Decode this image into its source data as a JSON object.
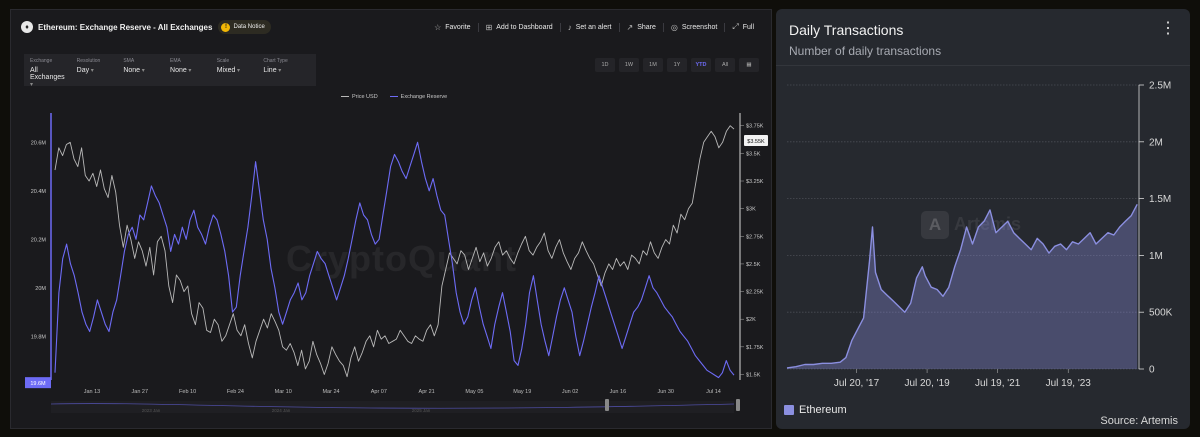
{
  "cq": {
    "logo_glyph": "♦",
    "title": "Ethereum: Exchange Reserve - All Exchanges",
    "notice": "Data Notice",
    "notice_icon": "!",
    "actions": [
      {
        "icon": "☆",
        "icon_name": "star-icon",
        "label": "Favorite"
      },
      {
        "icon": "⊞",
        "icon_name": "dashboard-icon",
        "label": "Add to Dashboard"
      },
      {
        "icon": "♪",
        "icon_name": "bell-icon",
        "label": "Set an alert"
      },
      {
        "icon": "↗",
        "icon_name": "share-icon",
        "label": "Share"
      },
      {
        "icon": "◎",
        "icon_name": "camera-icon",
        "label": "Screenshot"
      },
      {
        "icon": "⤢",
        "icon_name": "fullscreen-icon",
        "label": "Full"
      }
    ],
    "controls": [
      {
        "label": "Exchange",
        "value": "All Exchanges"
      },
      {
        "label": "Resolution",
        "value": "Day"
      },
      {
        "label": "SMA",
        "value": "None"
      },
      {
        "label": "EMA",
        "value": "None"
      },
      {
        "label": "Scale",
        "value": "Mixed"
      },
      {
        "label": "Chart Type",
        "value": "Line"
      }
    ],
    "ranges": [
      "1D",
      "1W",
      "1M",
      "1Y",
      "YTD",
      "All"
    ],
    "active_range": "YTD",
    "calendar_icon": "▦",
    "watermark": "CryptoQuant",
    "accent_color": "#6d6bf5",
    "price_color": "#b8b8b8"
  },
  "chart_data": [
    {
      "type": "line",
      "title": "Ethereum: Exchange Reserve - All Exchanges",
      "x_ticks": [
        "Jan 13",
        "Jan 27",
        "Feb 10",
        "Feb 24",
        "Mar 10",
        "Mar 24",
        "Apr 07",
        "Apr 21",
        "May 05",
        "May 19",
        "Jun 02",
        "Jun 16",
        "Jun 30",
        "Jul 14"
      ],
      "x_range": [
        "2025-01-01",
        "2025-07-20"
      ],
      "nav_labels": [
        "2023 Jan",
        "2024 Jan",
        "2025 Jan"
      ],
      "left_axis": {
        "ticks": [
          "20.6M",
          "20.4M",
          "20.2M",
          "20M",
          "19.8M"
        ],
        "range": [
          19.62,
          20.7
        ],
        "current_label": "19.6M"
      },
      "right_axis": {
        "ticks": [
          "$3.75K",
          "$3.5K",
          "$3.25K",
          "$3K",
          "$2.75K",
          "$2.5K",
          "$2.25K",
          "$2K",
          "$1.75K",
          "$1.5K"
        ],
        "range": [
          1.45,
          3.82
        ],
        "current_label": "$3.55K"
      },
      "series": [
        {
          "name": "Price USD",
          "axis": "right",
          "values": [
            3.35,
            3.55,
            3.48,
            3.58,
            3.6,
            3.45,
            3.38,
            3.55,
            3.3,
            3.25,
            3.32,
            3.2,
            3.35,
            3.18,
            3.1,
            3.3,
            3.15,
            2.85,
            2.65,
            2.85,
            2.72,
            2.55,
            2.7,
            2.62,
            2.48,
            2.65,
            2.4,
            2.7,
            2.75,
            2.62,
            2.3,
            2.15,
            2.4,
            2.35,
            2.25,
            2.3,
            2.05,
            1.95,
            2.15,
            2.1,
            1.9,
            1.88,
            2.0,
            1.95,
            1.8,
            1.85,
            1.95,
            2.05,
            1.9,
            1.85,
            1.95,
            1.78,
            1.65,
            1.8,
            1.9,
            2.0,
            1.92,
            2.05,
            1.98,
            1.9,
            1.75,
            1.72,
            1.78,
            1.7,
            1.58,
            1.72,
            1.55,
            1.62,
            1.8,
            1.68,
            1.6,
            1.5,
            1.6,
            1.75,
            1.68,
            1.62,
            1.58,
            1.48,
            1.65,
            1.75,
            1.62,
            1.7,
            1.8,
            1.85,
            1.75,
            1.9,
            1.82,
            1.85,
            1.78,
            1.8,
            1.82,
            1.9,
            1.85,
            1.8,
            1.78,
            1.85,
            1.82,
            1.8,
            1.9,
            1.95,
            1.85,
            1.95,
            2.3,
            2.45,
            2.6,
            2.55,
            2.5,
            2.62,
            2.58,
            2.45,
            2.55,
            2.65,
            2.52,
            2.6,
            2.48,
            2.55,
            2.65,
            2.7,
            2.58,
            2.62,
            2.55,
            2.5,
            2.6,
            2.68,
            2.75,
            2.62,
            2.58,
            2.65,
            2.7,
            2.78,
            2.62,
            2.55,
            2.65,
            2.72,
            2.6,
            2.52,
            2.45,
            2.55,
            2.6,
            2.7,
            2.62,
            2.55,
            2.5,
            2.4,
            2.3,
            2.42,
            2.5,
            2.45,
            2.55,
            2.48,
            2.52,
            2.45,
            2.58,
            2.55,
            2.5,
            2.62,
            2.58,
            2.7,
            2.6,
            2.55,
            2.65,
            2.72,
            2.68,
            2.85,
            2.78,
            2.95,
            2.9,
            3.0,
            3.05,
            3.25,
            3.45,
            3.6,
            3.65,
            3.7,
            3.65,
            3.55,
            3.6,
            3.7,
            3.75,
            3.72
          ]
        },
        {
          "name": "Exchange Reserve",
          "axis": "left",
          "values": [
            19.65,
            19.98,
            20.12,
            20.18,
            20.1,
            20.05,
            19.98,
            19.9,
            19.85,
            19.82,
            19.88,
            19.95,
            19.9,
            19.85,
            19.82,
            19.9,
            19.95,
            20.05,
            20.15,
            20.22,
            20.25,
            20.2,
            20.3,
            20.28,
            20.35,
            20.42,
            20.38,
            20.35,
            20.3,
            20.25,
            20.15,
            20.22,
            20.18,
            20.25,
            20.2,
            20.28,
            20.32,
            20.25,
            20.22,
            20.18,
            20.25,
            20.3,
            20.28,
            20.22,
            20.15,
            20.05,
            19.9,
            19.92,
            20.05,
            20.15,
            20.25,
            20.38,
            20.52,
            20.4,
            20.28,
            20.2,
            20.08,
            20.0,
            19.9,
            19.85,
            19.9,
            19.95,
            19.98,
            20.02,
            19.95,
            19.98,
            20.05,
            20.1,
            20.15,
            20.12,
            20.1,
            20.05,
            20.0,
            19.95,
            20.0,
            20.05,
            20.12,
            20.2,
            20.28,
            20.35,
            20.3,
            20.28,
            20.22,
            20.18,
            20.2,
            20.3,
            20.4,
            20.5,
            20.55,
            20.52,
            20.48,
            20.45,
            20.5,
            20.55,
            20.6,
            20.52,
            20.45,
            20.4,
            20.45,
            20.38,
            20.32,
            20.3,
            20.2,
            20.1,
            19.98,
            19.9,
            19.85,
            19.88,
            19.95,
            20.0,
            19.92,
            19.85,
            19.8,
            19.75,
            19.85,
            19.92,
            19.98,
            19.9,
            19.82,
            19.7,
            19.68,
            19.75,
            19.85,
            19.98,
            20.05,
            19.95,
            19.85,
            19.78,
            19.72,
            19.8,
            19.88,
            19.95,
            20.0,
            19.95,
            19.9,
            19.8,
            19.72,
            19.78,
            19.85,
            19.92,
            19.98,
            20.05,
            20.0,
            19.95,
            19.9,
            19.85,
            19.8,
            19.75,
            19.8,
            19.85,
            19.9,
            19.92,
            19.95,
            20.0,
            20.05,
            20.0,
            19.98,
            19.95,
            19.92,
            19.9,
            19.88,
            19.85,
            19.82,
            19.8,
            19.78,
            19.75,
            19.72,
            19.7,
            19.68,
            19.66,
            19.65,
            19.64,
            19.63,
            19.65,
            19.7,
            19.66,
            19.64
          ]
        }
      ]
    },
    {
      "type": "area",
      "title": "Daily Transactions",
      "subtitle": "Number of daily transactions",
      "x_ticks": [
        "Jul 20, '17",
        "Jul 20, '19",
        "Jul 19, '21",
        "Jul 19, '23"
      ],
      "x_range": [
        "2015-08-01",
        "2025-07-20"
      ],
      "y_ticks": [
        "0",
        "500K",
        "1M",
        "1.5M",
        "2M",
        "2.5M"
      ],
      "ylim": [
        0,
        2500000
      ],
      "series": [
        {
          "name": "Ethereum",
          "x": [
            "2015-08",
            "2015-11",
            "2016-02",
            "2016-05",
            "2016-08",
            "2016-11",
            "2017-02",
            "2017-04",
            "2017-06",
            "2017-08",
            "2017-10",
            "2017-12",
            "2018-01",
            "2018-02",
            "2018-04",
            "2018-06",
            "2018-08",
            "2018-10",
            "2018-12",
            "2019-02",
            "2019-04",
            "2019-06",
            "2019-07",
            "2019-09",
            "2019-11",
            "2020-01",
            "2020-03",
            "2020-05",
            "2020-07",
            "2020-09",
            "2020-11",
            "2021-01",
            "2021-03",
            "2021-05",
            "2021-07",
            "2021-09",
            "2021-11",
            "2022-01",
            "2022-03",
            "2022-05",
            "2022-07",
            "2022-09",
            "2022-11",
            "2023-01",
            "2023-03",
            "2023-05",
            "2023-07",
            "2023-09",
            "2023-11",
            "2024-01",
            "2024-03",
            "2024-05",
            "2024-07",
            "2024-09",
            "2024-11",
            "2025-01",
            "2025-03",
            "2025-05",
            "2025-07"
          ],
          "values": [
            10000,
            20000,
            40000,
            40000,
            50000,
            50000,
            60000,
            100000,
            250000,
            350000,
            450000,
            950000,
            1250000,
            850000,
            700000,
            650000,
            600000,
            550000,
            500000,
            580000,
            800000,
            900000,
            820000,
            720000,
            700000,
            640000,
            720000,
            900000,
            1050000,
            1250000,
            1100000,
            1250000,
            1300000,
            1400000,
            1200000,
            1250000,
            1300000,
            1200000,
            1150000,
            1100000,
            1050000,
            1150000,
            1100000,
            1020000,
            1080000,
            1100000,
            1050000,
            1120000,
            1100000,
            1150000,
            1200000,
            1100000,
            1150000,
            1200000,
            1180000,
            1250000,
            1300000,
            1350000,
            1450000
          ]
        }
      ],
      "source": "Source: Artemis",
      "watermark": "Artemis",
      "logo_glyph": "A",
      "series_color": "#8b8fe0"
    }
  ],
  "ar": {
    "menu_glyph": "⋮"
  }
}
